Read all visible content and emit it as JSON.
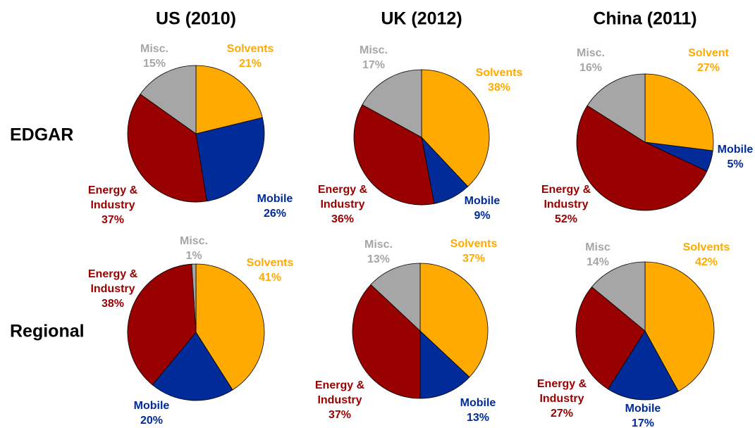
{
  "columns": [
    "US (2010)",
    "UK (2012)",
    "China (2011)"
  ],
  "rows": [
    "EDGAR",
    "Regional"
  ],
  "chart_data": [
    {
      "type": "pie",
      "categories": [
        "Solvents",
        "Mobile",
        "Energy & Industry",
        "Misc."
      ],
      "values": [
        21,
        26,
        37,
        15
      ],
      "value_labels": [
        "21%",
        "26%",
        "37%",
        "15%"
      ],
      "colors": [
        "#FFAA00",
        "#002B99",
        "#990000",
        "#A6A6A6"
      ]
    },
    {
      "type": "pie",
      "categories": [
        "Solvents",
        "Mobile",
        "Energy & Industry",
        "Misc."
      ],
      "values": [
        38,
        9,
        36,
        17
      ],
      "value_labels": [
        "38%",
        "9%",
        "36%",
        "17%"
      ],
      "colors": [
        "#FFAA00",
        "#002B99",
        "#990000",
        "#A6A6A6"
      ]
    },
    {
      "type": "pie",
      "categories": [
        "Solvent",
        "Mobile",
        "Energy & Industry",
        "Misc."
      ],
      "values": [
        27,
        5,
        52,
        16
      ],
      "value_labels": [
        "27%",
        "5%",
        "52%",
        "16%"
      ],
      "colors": [
        "#FFAA00",
        "#002B99",
        "#990000",
        "#A6A6A6"
      ]
    },
    {
      "type": "pie",
      "categories": [
        "Solvents",
        "Mobile",
        "Energy & Industry",
        "Misc."
      ],
      "values": [
        41,
        20,
        38,
        1
      ],
      "value_labels": [
        "41%",
        "20%",
        "38%",
        "1%"
      ],
      "colors": [
        "#FFAA00",
        "#002B99",
        "#990000",
        "#A6A6A6"
      ]
    },
    {
      "type": "pie",
      "categories": [
        "Solvents",
        "Mobile",
        "Energy & Industry",
        "Misc."
      ],
      "values": [
        37,
        13,
        37,
        13
      ],
      "value_labels": [
        "37%",
        "13%",
        "37%",
        "13%"
      ],
      "colors": [
        "#FFAA00",
        "#002B99",
        "#990000",
        "#A6A6A6"
      ]
    },
    {
      "type": "pie",
      "categories": [
        "Solvents",
        "Mobile",
        "Energy & Industry",
        "Misc"
      ],
      "values": [
        42,
        17,
        27,
        14
      ],
      "value_labels": [
        "42%",
        "17%",
        "27%",
        "14%"
      ],
      "colors": [
        "#FFAA00",
        "#002B99",
        "#990000",
        "#A6A6A6"
      ]
    }
  ]
}
